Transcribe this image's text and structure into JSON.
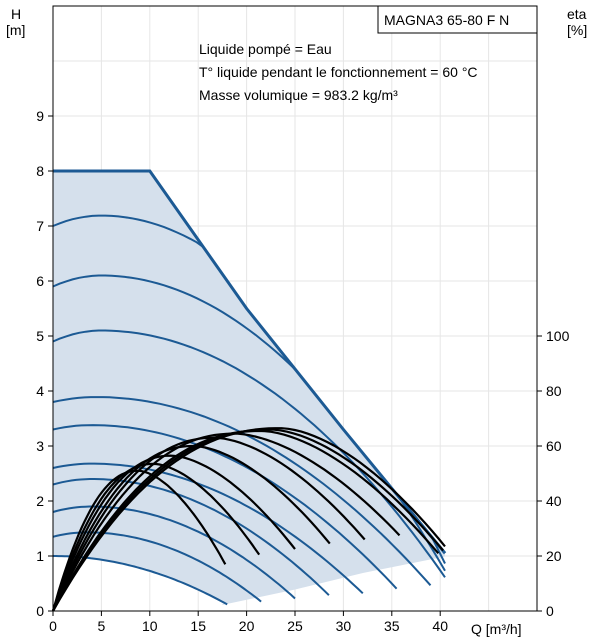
{
  "chart_data": {
    "type": "line",
    "title": "MAGNA3 65-80 F N",
    "annotations": [
      "Liquide pompé = Eau",
      "T° liquide pendant le fonctionnement = 60 °C",
      "Masse volumique = 983.2 kg/m³"
    ],
    "xlabel": "Q [m³/h]",
    "ylabel_left_top": "H",
    "ylabel_left_unit": "[m]",
    "ylabel_right_top": "eta",
    "ylabel_right_unit": "[%]",
    "xlim": [
      0,
      50
    ],
    "ylim": [
      0,
      11
    ],
    "y2lim": [
      0,
      220
    ],
    "xticks": [
      0,
      5,
      10,
      15,
      20,
      25,
      30,
      35,
      40
    ],
    "yticks": [
      0,
      1,
      2,
      3,
      4,
      5,
      6,
      7,
      8,
      9
    ],
    "y2ticks": [
      0,
      20,
      40,
      60,
      80,
      100
    ],
    "grid": true,
    "colors": {
      "envelope_fill": "#d5e0ec",
      "max_curve": "#1c5a94",
      "speed_curves": "#1c5a94",
      "eta_curves": "#000000"
    },
    "envelope": {
      "max_curve": [
        [
          0,
          8
        ],
        [
          10,
          8
        ],
        [
          20,
          5.5
        ],
        [
          30,
          3.3
        ],
        [
          40.5,
          1.05
        ]
      ],
      "min_curve": [
        [
          17.5,
          0.12
        ],
        [
          25,
          0.4
        ],
        [
          32,
          0.7
        ],
        [
          40.5,
          1.0
        ]
      ]
    },
    "speed_curves": [
      {
        "H0": 1.0,
        "Hpeak": 1.0,
        "qpeak": 0,
        "qend": 18
      },
      {
        "H0": 1.35,
        "Hpeak": 1.43,
        "qpeak": 3.5,
        "qend": 21.5
      },
      {
        "H0": 1.8,
        "Hpeak": 1.9,
        "qpeak": 4,
        "qend": 25
      },
      {
        "H0": 2.3,
        "Hpeak": 2.4,
        "qpeak": 4,
        "qend": 28.5
      },
      {
        "H0": 2.6,
        "Hpeak": 2.68,
        "qpeak": 4,
        "qend": 32
      },
      {
        "H0": 3.3,
        "Hpeak": 3.38,
        "qpeak": 4,
        "qend": 35.5
      },
      {
        "H0": 3.8,
        "Hpeak": 3.89,
        "qpeak": 4.5,
        "qend": 39
      },
      {
        "H0": 4.9,
        "Hpeak": 5.1,
        "qpeak": 5,
        "qend": 40.5
      },
      {
        "H0": 5.9,
        "Hpeak": 6.1,
        "qpeak": 5,
        "qend": 40.5
      },
      {
        "H0": 7.0,
        "Hpeak": 7.19,
        "qpeak": 5,
        "qend": 40.5
      }
    ],
    "efficiency_curves": [
      {
        "qend": 17.8,
        "eta_end": 17,
        "qpeak": 8.8,
        "eta_peak": 51
      },
      {
        "qend": 21.3,
        "eta_end": 20.5,
        "qpeak": 10.4,
        "eta_peak": 53.5
      },
      {
        "qend": 25.0,
        "eta_end": 22.5,
        "qpeak": 12.2,
        "eta_peak": 56.5
      },
      {
        "qend": 28.6,
        "eta_end": 24.5,
        "qpeak": 14.5,
        "eta_peak": 60
      },
      {
        "qend": 32.2,
        "eta_end": 26,
        "qpeak": 16.7,
        "eta_peak": 63
      },
      {
        "qend": 35.8,
        "eta_end": 27.5,
        "qpeak": 18.8,
        "eta_peak": 64.5
      },
      {
        "qend": 39.8,
        "eta_end": 21,
        "qpeak": 21.5,
        "eta_peak": 65.5
      },
      {
        "qend": 40.3,
        "eta_end": 22,
        "qpeak": 22.5,
        "eta_peak": 66
      },
      {
        "qend": 40.5,
        "eta_end": 23.5,
        "qpeak": 23.5,
        "eta_peak": 66.5
      }
    ]
  }
}
